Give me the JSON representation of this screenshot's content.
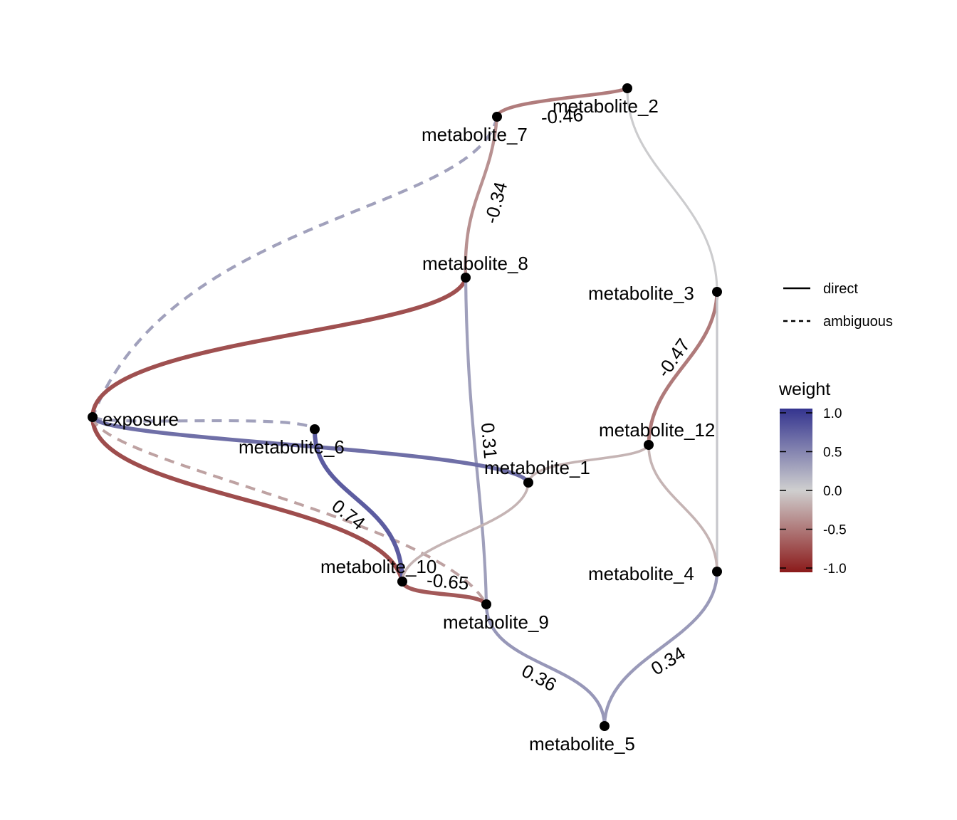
{
  "nodes": [
    {
      "id": "metabolite_2",
      "label": "metabolite_2"
    },
    {
      "id": "metabolite_7",
      "label": "metabolite_7"
    },
    {
      "id": "metabolite_8",
      "label": "metabolite_8"
    },
    {
      "id": "metabolite_3",
      "label": "metabolite_3"
    },
    {
      "id": "exposure",
      "label": "exposure"
    },
    {
      "id": "metabolite_6",
      "label": "metabolite_6"
    },
    {
      "id": "metabolite_12",
      "label": "metabolite_12"
    },
    {
      "id": "metabolite_1",
      "label": "metabolite_1"
    },
    {
      "id": "metabolite_10",
      "label": "metabolite_10"
    },
    {
      "id": "metabolite_9",
      "label": "metabolite_9"
    },
    {
      "id": "metabolite_4",
      "label": "metabolite_4"
    },
    {
      "id": "metabolite_5",
      "label": "metabolite_5"
    }
  ],
  "edges": [
    {
      "from": "metabolite_7",
      "to": "exposure",
      "type": "ambiguous",
      "weight": 0.3,
      "label": ""
    },
    {
      "from": "metabolite_7",
      "to": "metabolite_2",
      "type": "direct",
      "weight": -0.46,
      "label": "-0.46"
    },
    {
      "from": "metabolite_2",
      "to": "metabolite_3",
      "type": "direct",
      "weight": 0.02,
      "label": ""
    },
    {
      "from": "metabolite_7",
      "to": "metabolite_8",
      "type": "direct",
      "weight": -0.34,
      "label": "-0.34"
    },
    {
      "from": "exposure",
      "to": "metabolite_8",
      "type": "direct",
      "weight": -0.7,
      "label": ""
    },
    {
      "from": "metabolite_8",
      "to": "metabolite_9",
      "type": "direct",
      "weight": 0.31,
      "label": "0.31"
    },
    {
      "from": "metabolite_3",
      "to": "metabolite_12",
      "type": "direct",
      "weight": -0.47,
      "label": "-0.47"
    },
    {
      "from": "metabolite_3",
      "to": "metabolite_4",
      "type": "direct",
      "weight": 0.05,
      "label": ""
    },
    {
      "from": "exposure",
      "to": "metabolite_6",
      "type": "ambiguous",
      "weight": 0.3,
      "label": ""
    },
    {
      "from": "exposure",
      "to": "metabolite_1",
      "type": "direct",
      "weight": 0.62,
      "label": ""
    },
    {
      "from": "exposure",
      "to": "metabolite_10",
      "type": "direct",
      "weight": -0.72,
      "label": ""
    },
    {
      "from": "exposure",
      "to": "metabolite_9",
      "type": "ambiguous",
      "weight": -0.25,
      "label": ""
    },
    {
      "from": "metabolite_6",
      "to": "metabolite_10",
      "type": "direct",
      "weight": 0.74,
      "label": "0.74"
    },
    {
      "from": "metabolite_12",
      "to": "metabolite_1",
      "type": "direct",
      "weight": -0.15,
      "label": ""
    },
    {
      "from": "metabolite_12",
      "to": "metabolite_4",
      "type": "direct",
      "weight": -0.15,
      "label": ""
    },
    {
      "from": "metabolite_1",
      "to": "metabolite_10",
      "type": "direct",
      "weight": -0.15,
      "label": ""
    },
    {
      "from": "metabolite_10",
      "to": "metabolite_9",
      "type": "direct",
      "weight": -0.65,
      "label": "-0.65"
    },
    {
      "from": "metabolite_9",
      "to": "metabolite_5",
      "type": "direct",
      "weight": 0.36,
      "label": "0.36"
    },
    {
      "from": "metabolite_4",
      "to": "metabolite_5",
      "type": "direct",
      "weight": 0.34,
      "label": "0.34"
    }
  ],
  "legend": {
    "linetype_items": [
      {
        "key": "direct",
        "label": "direct"
      },
      {
        "key": "ambiguous",
        "label": "ambiguous"
      }
    ],
    "weight_title": "weight",
    "weight_ticks": [
      {
        "value": 1.0,
        "label": "1.0"
      },
      {
        "value": 0.5,
        "label": "0.5"
      },
      {
        "value": 0.0,
        "label": "0.0"
      },
      {
        "value": -0.5,
        "label": "-0.5"
      },
      {
        "value": -1.0,
        "label": "-1.0"
      }
    ],
    "colors": {
      "negative": "#8b1a1a",
      "zero": "#cfcfcf",
      "positive": "#34348f"
    }
  }
}
